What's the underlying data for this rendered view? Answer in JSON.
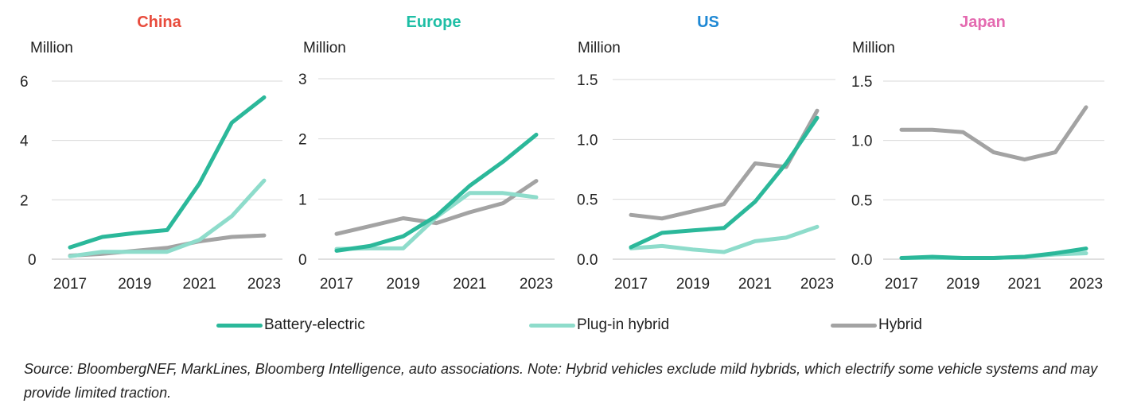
{
  "chart_data": [
    {
      "type": "line",
      "title": "China",
      "title_color": "#E84C3D",
      "ylabel": "Million",
      "x": [
        2017,
        2018,
        2019,
        2020,
        2021,
        2022,
        2023
      ],
      "xticks": [
        "2017",
        "2019",
        "2021",
        "2023"
      ],
      "yticks": [
        "0",
        "2",
        "4",
        "6"
      ],
      "ylim": [
        0,
        6
      ],
      "grid": true,
      "series": [
        {
          "name": "Battery-electric",
          "values": [
            0.4,
            0.75,
            0.88,
            0.98,
            2.55,
            4.6,
            5.45
          ]
        },
        {
          "name": "Plug-in hybrid",
          "values": [
            0.1,
            0.25,
            0.25,
            0.25,
            0.65,
            1.45,
            2.65
          ]
        },
        {
          "name": "Hybrid",
          "values": [
            0.12,
            0.18,
            0.28,
            0.38,
            0.6,
            0.75,
            0.8
          ]
        }
      ]
    },
    {
      "type": "line",
      "title": "Europe",
      "title_color": "#1EBEA5",
      "ylabel": "Million",
      "x": [
        2017,
        2018,
        2019,
        2020,
        2021,
        2022,
        2023
      ],
      "xticks": [
        "2017",
        "2019",
        "2021",
        "2023"
      ],
      "yticks": [
        "0",
        "1",
        "2",
        "3"
      ],
      "ylim": [
        0,
        3
      ],
      "grid": true,
      "series": [
        {
          "name": "Battery-electric",
          "values": [
            0.14,
            0.22,
            0.38,
            0.72,
            1.22,
            1.62,
            2.07
          ]
        },
        {
          "name": "Plug-in hybrid",
          "values": [
            0.17,
            0.18,
            0.18,
            0.7,
            1.1,
            1.1,
            1.03
          ]
        },
        {
          "name": "Hybrid",
          "values": [
            0.42,
            0.55,
            0.68,
            0.6,
            0.78,
            0.93,
            1.3
          ]
        }
      ]
    },
    {
      "type": "line",
      "title": "US",
      "title_color": "#1E88D4",
      "ylabel": "Million",
      "x": [
        2017,
        2018,
        2019,
        2020,
        2021,
        2022,
        2023
      ],
      "xticks": [
        "2017",
        "2019",
        "2021",
        "2023"
      ],
      "yticks": [
        "0.0",
        "0.5",
        "1.0",
        "1.5"
      ],
      "ylim": [
        0,
        1.5
      ],
      "grid": true,
      "series": [
        {
          "name": "Battery-electric",
          "values": [
            0.1,
            0.22,
            0.24,
            0.26,
            0.48,
            0.8,
            1.18
          ]
        },
        {
          "name": "Plug-in hybrid",
          "values": [
            0.09,
            0.11,
            0.08,
            0.06,
            0.15,
            0.18,
            0.27
          ]
        },
        {
          "name": "Hybrid",
          "values": [
            0.37,
            0.34,
            0.4,
            0.46,
            0.8,
            0.77,
            1.24
          ]
        }
      ]
    },
    {
      "type": "line",
      "title": "Japan",
      "title_color": "#E46AB0",
      "ylabel": "Million",
      "x": [
        2017,
        2018,
        2019,
        2020,
        2021,
        2022,
        2023
      ],
      "xticks": [
        "2017",
        "2019",
        "2021",
        "2023"
      ],
      "yticks": [
        "0.0",
        "0.5",
        "1.0",
        "1.5"
      ],
      "ylim": [
        0,
        1.5
      ],
      "grid": true,
      "series": [
        {
          "name": "Battery-electric",
          "values": [
            0.01,
            0.02,
            0.01,
            0.01,
            0.02,
            0.05,
            0.09
          ]
        },
        {
          "name": "Plug-in hybrid",
          "values": [
            0.01,
            0.01,
            0.01,
            0.01,
            0.02,
            0.04,
            0.05
          ]
        },
        {
          "name": "Hybrid",
          "values": [
            1.09,
            1.09,
            1.07,
            0.9,
            0.84,
            0.9,
            1.28
          ]
        }
      ]
    }
  ],
  "series_colors": {
    "Battery-electric": "#2BB89A",
    "Plug-in hybrid": "#8EDCCB",
    "Hybrid": "#A3A3A3",
    "grid": "#D9D9D9"
  },
  "legend": {
    "items": [
      {
        "label": "Battery-electric",
        "color": "#2BB89A"
      },
      {
        "label": "Plug-in hybrid",
        "color": "#8EDCCB"
      },
      {
        "label": "Hybrid",
        "color": "#A3A3A3"
      }
    ]
  },
  "source_note": "Source: BloombergNEF, MarkLines, Bloomberg Intelligence, auto associations. Note: Hybrid vehicles exclude mild hybrids, which electrify some vehicle systems and may provide limited traction."
}
